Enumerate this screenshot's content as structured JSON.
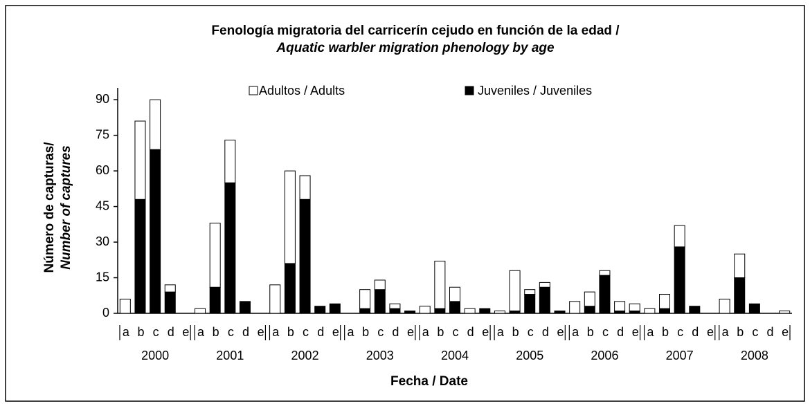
{
  "chart_data": {
    "type": "stacked_bar",
    "title": [
      "Fenología migratoria del carricerín cejudo en función de la edad /",
      "Aquatic warbler migration phenology by age"
    ],
    "y_label": [
      "Número de capturas/",
      "Number of captures"
    ],
    "x_label": "Fecha / Date",
    "groups": [
      "2000",
      "2001",
      "2002",
      "2003",
      "2004",
      "2005",
      "2006",
      "2007",
      "2008"
    ],
    "categories": [
      "a",
      "b",
      "c",
      "d",
      "e",
      "a",
      "b",
      "c",
      "d",
      "e",
      "a",
      "b",
      "c",
      "d",
      "e",
      "a",
      "b",
      "c",
      "d",
      "e",
      "a",
      "b",
      "c",
      "d",
      "e",
      "a",
      "b",
      "c",
      "d",
      "e",
      "a",
      "b",
      "c",
      "d",
      "e",
      "a",
      "b",
      "c",
      "d",
      "e",
      "a",
      "b",
      "c",
      "d",
      "e"
    ],
    "series": [
      {
        "name": "Juveniles / Juveniles",
        "color": "#000000",
        "values": [
          0,
          48,
          69,
          9,
          0,
          0,
          11,
          55,
          5,
          0,
          0,
          21,
          48,
          3,
          4,
          0,
          2,
          10,
          2,
          1,
          0,
          2,
          5,
          0,
          2,
          0,
          1,
          8,
          11,
          1,
          0,
          3,
          16,
          1,
          1,
          0,
          2,
          28,
          3,
          0,
          0,
          15,
          4,
          0,
          0
        ]
      },
      {
        "name": "Adultos / Adults",
        "color": "#ffffff",
        "values": [
          6,
          33,
          21,
          3,
          0,
          2,
          27,
          18,
          0,
          0,
          12,
          39,
          10,
          0,
          0,
          0,
          8,
          4,
          2,
          0,
          3,
          20,
          6,
          2,
          0,
          1,
          17,
          2,
          2,
          0,
          5,
          6,
          2,
          4,
          3,
          2,
          6,
          9,
          0,
          0,
          6,
          10,
          0,
          0,
          1
        ]
      }
    ],
    "ylim": [
      0,
      95
    ],
    "yticks": [
      0,
      15,
      30,
      45,
      60,
      75,
      90
    ],
    "grid": false
  }
}
